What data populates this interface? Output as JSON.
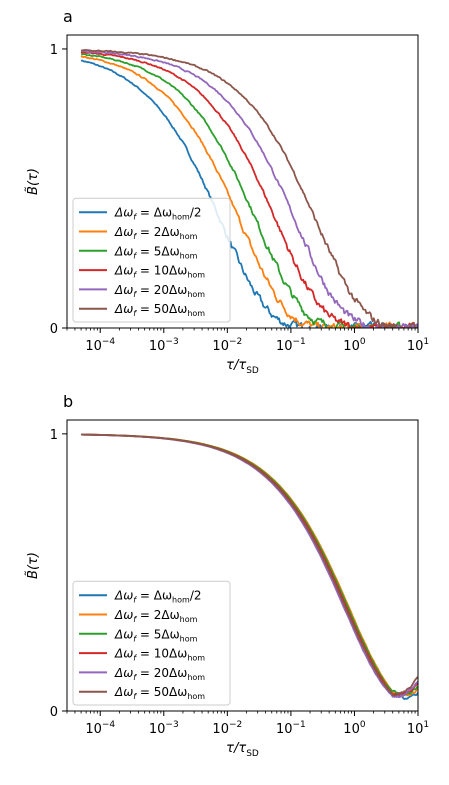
{
  "chart_data": [
    {
      "type": "line",
      "panel_label": "a",
      "xscale": "log",
      "xlim": [
        3e-05,
        10
      ],
      "ylim": [
        0,
        1.05
      ],
      "xlabel_main": "τ/τ",
      "xlabel_sub": "SD",
      "ylabel_main": "B̃(τ)",
      "x_ticks": [
        {
          "value": 0.0001,
          "base": "10",
          "exp": "−4"
        },
        {
          "value": 0.001,
          "base": "10",
          "exp": "−3"
        },
        {
          "value": 0.01,
          "base": "10",
          "exp": "−2"
        },
        {
          "value": 0.1,
          "base": "10",
          "exp": "−1"
        },
        {
          "value": 1,
          "base": "10",
          "exp": "0"
        },
        {
          "value": 10,
          "base": "10",
          "exp": "1"
        }
      ],
      "y_ticks": [
        {
          "value": 0,
          "label": "0"
        },
        {
          "value": 1,
          "label": "1"
        }
      ],
      "legend_placement": "lower-left",
      "series": [
        {
          "name": "Δω_f = Δω_hom/2",
          "legend_main": "Δω",
          "legend_sub1": "f",
          "legend_mid": " = Δω",
          "legend_sub2": "hom",
          "legend_tail": "/2",
          "color": "#1f77b4",
          "tau_c": 0.006,
          "noise": 0.03
        },
        {
          "name": "Δω_f = 2Δω_hom",
          "legend_main": "Δω",
          "legend_sub1": "f",
          "legend_mid": " = 2Δω",
          "legend_sub2": "hom",
          "legend_tail": "",
          "color": "#ff7f0e",
          "tau_c": 0.012,
          "noise": 0.03
        },
        {
          "name": "Δω_f = 5Δω_hom",
          "legend_main": "Δω",
          "legend_sub1": "f",
          "legend_mid": " = 5Δω",
          "legend_sub2": "hom",
          "legend_tail": "",
          "color": "#2ca02c",
          "tau_c": 0.022,
          "noise": 0.03
        },
        {
          "name": "Δω_f = 10Δω_hom",
          "legend_main": "Δω",
          "legend_sub1": "f",
          "legend_mid": " = 10Δω",
          "legend_sub2": "hom",
          "legend_tail": "",
          "color": "#d62728",
          "tau_c": 0.045,
          "noise": 0.03
        },
        {
          "name": "Δω_f = 20Δω_hom",
          "legend_main": "Δω",
          "legend_sub1": "f",
          "legend_mid": " = 20Δω",
          "legend_sub2": "hom",
          "legend_tail": "",
          "color": "#9467bd",
          "tau_c": 0.09,
          "noise": 0.03
        },
        {
          "name": "Δω_f = 50Δω_hom",
          "legend_main": "Δω",
          "legend_sub1": "f",
          "legend_mid": " = 50Δω",
          "legend_sub2": "hom",
          "legend_tail": "",
          "color": "#8c564b",
          "tau_c": 0.19,
          "noise": 0.03
        }
      ]
    },
    {
      "type": "line",
      "panel_label": "b",
      "xscale": "log",
      "xlim": [
        3e-05,
        10
      ],
      "ylim": [
        0,
        1.05
      ],
      "xlabel_main": "τ/τ",
      "xlabel_sub": "SD",
      "ylabel_main": "B̃(τ)",
      "x_ticks": [
        {
          "value": 0.0001,
          "base": "10",
          "exp": "−4"
        },
        {
          "value": 0.001,
          "base": "10",
          "exp": "−3"
        },
        {
          "value": 0.01,
          "base": "10",
          "exp": "−2"
        },
        {
          "value": 0.1,
          "base": "10",
          "exp": "−1"
        },
        {
          "value": 1,
          "base": "10",
          "exp": "0"
        },
        {
          "value": 10,
          "base": "10",
          "exp": "1"
        }
      ],
      "y_ticks": [
        {
          "value": 0,
          "label": "0"
        },
        {
          "value": 1,
          "label": "1"
        }
      ],
      "legend_placement": "lower-left",
      "series": [
        {
          "name": "Δω_f = Δω_hom/2",
          "legend_main": "Δω",
          "legend_sub1": "f",
          "legend_mid": " = Δω",
          "legend_sub2": "hom",
          "legend_tail": "/2",
          "color": "#1f77b4",
          "tau_c": 0.56,
          "noise": 0.004
        },
        {
          "name": "Δω_f = 2Δω_hom",
          "legend_main": "Δω",
          "legend_sub1": "f",
          "legend_mid": " = 2Δω",
          "legend_sub2": "hom",
          "legend_tail": "",
          "color": "#ff7f0e",
          "tau_c": 0.6,
          "noise": 0.004
        },
        {
          "name": "Δω_f = 5Δω_hom",
          "legend_main": "Δω",
          "legend_sub1": "f",
          "legend_mid": " = 5Δω",
          "legend_sub2": "hom",
          "legend_tail": "",
          "color": "#2ca02c",
          "tau_c": 0.58,
          "noise": 0.004
        },
        {
          "name": "Δω_f = 10Δω_hom",
          "legend_main": "Δω",
          "legend_sub1": "f",
          "legend_mid": " = 10Δω",
          "legend_sub2": "hom",
          "legend_tail": "",
          "color": "#d62728",
          "tau_c": 0.55,
          "noise": 0.004
        },
        {
          "name": "Δω_f = 20Δω_hom",
          "legend_main": "Δω",
          "legend_sub1": "f",
          "legend_mid": " = 20Δω",
          "legend_sub2": "hom",
          "legend_tail": "",
          "color": "#9467bd",
          "tau_c": 0.5,
          "noise": 0.004
        },
        {
          "name": "Δω_f = 50Δω_hom",
          "legend_main": "Δω",
          "legend_sub1": "f",
          "legend_mid": " = 50Δω",
          "legend_sub2": "hom",
          "legend_tail": "",
          "color": "#8c564b",
          "tau_c": 0.53,
          "noise": 0.004
        }
      ]
    }
  ]
}
